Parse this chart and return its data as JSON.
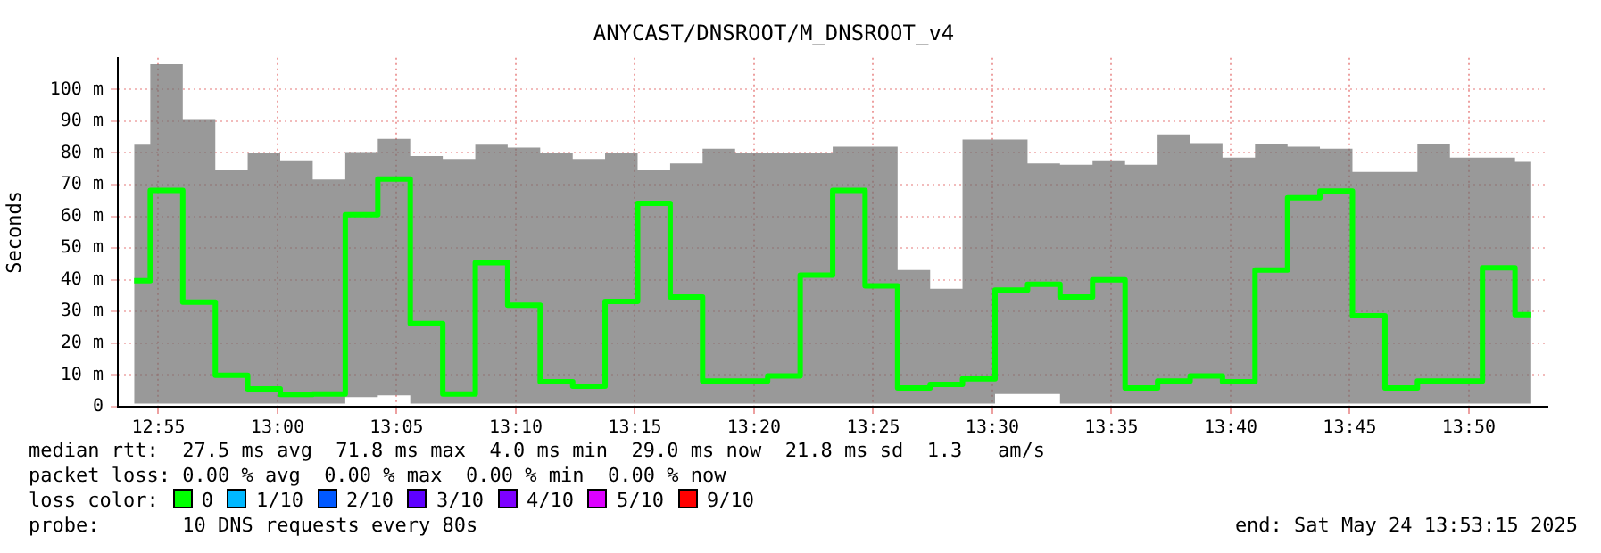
{
  "chart_data": {
    "type": "step",
    "title": "ANYCAST/DNSROOT/M_DNSROOT_v4",
    "ylabel": "Seconds",
    "x": [
      12.8997,
      12.9223,
      12.9452,
      12.9678,
      12.9905,
      13.0133,
      13.036,
      13.0588,
      13.0815,
      13.1042,
      13.127,
      13.1497,
      13.1723,
      13.1952,
      13.2178,
      13.2405,
      13.2633,
      13.286,
      13.3087,
      13.3315,
      13.3542,
      13.377,
      13.3997,
      13.4223,
      13.4452,
      13.4678,
      13.4905,
      13.5133,
      13.536,
      13.5587,
      13.5815,
      13.6042,
      13.627,
      13.6497,
      13.6723,
      13.6952,
      13.7178,
      13.7405,
      13.7633,
      13.786,
      13.8087,
      13.8315,
      13.8542,
      13.877
    ],
    "series": [
      {
        "color": "#00ff00",
        "values": [
          39.7,
          68.2,
          33,
          9.9,
          5.6,
          3.9,
          4,
          60.5,
          71.8,
          26.2,
          4,
          45.4,
          32,
          7.9,
          6.5,
          33.2,
          64.1,
          34.6,
          8.1,
          8.1,
          9.7,
          41.5,
          68.2,
          38.1,
          5.9,
          7,
          8.8,
          36.8,
          38.6,
          34.6,
          40,
          5.9,
          8.1,
          9.7,
          7.9,
          43.1,
          65.9,
          68,
          28.7,
          5.9,
          8.1,
          8.1,
          43.8,
          29
        ],
        "lower": [
          1,
          1,
          1,
          1,
          1,
          1,
          1,
          3,
          3.6,
          1,
          1,
          1,
          1,
          1,
          1,
          1,
          1,
          1,
          1,
          1,
          1,
          1,
          1,
          1,
          1,
          1,
          1,
          4,
          4,
          1,
          1,
          1,
          1,
          1,
          1,
          1,
          1,
          1,
          1,
          1,
          1,
          1,
          1,
          1
        ],
        "upper": [
          82.6,
          108,
          90.7,
          74.5,
          79.9,
          77.7,
          71.6,
          80.3,
          84.4,
          79,
          78.1,
          82.6,
          81.7,
          79.9,
          78.1,
          79.9,
          74.5,
          76.7,
          81.3,
          79.9,
          79.9,
          79.9,
          82,
          82,
          43.1,
          37.2,
          84.2,
          84.2,
          76.7,
          76.3,
          77.7,
          76.3,
          85.8,
          83.1,
          78.5,
          82.8,
          82,
          81.3,
          74,
          74,
          82.8,
          78.5,
          78.5,
          77.2
        ]
      }
    ],
    "xlim": [
      12.8883,
      13.8883
    ],
    "xticks": [
      {
        "value": 12.9167,
        "label": "12:55"
      },
      {
        "value": 13,
        "label": "13:00"
      },
      {
        "value": 13.0833,
        "label": "13:05"
      },
      {
        "value": 13.1667,
        "label": "13:10"
      },
      {
        "value": 13.25,
        "label": "13:15"
      },
      {
        "value": 13.3333,
        "label": "13:20"
      },
      {
        "value": 13.4167,
        "label": "13:25"
      },
      {
        "value": 13.5,
        "label": "13:30"
      },
      {
        "value": 13.5833,
        "label": "13:35"
      },
      {
        "value": 13.6667,
        "label": "13:40"
      },
      {
        "value": 13.75,
        "label": "13:45"
      },
      {
        "value": 13.8333,
        "label": "13:50"
      }
    ],
    "ylim": [
      0,
      110
    ],
    "yticks": [
      0,
      {
        "value": 10,
        "label": "10 m"
      },
      {
        "value": 20,
        "label": "20 m"
      },
      {
        "value": 30,
        "label": "30 m"
      },
      {
        "value": 40,
        "label": "40 m"
      },
      {
        "value": 50,
        "label": "50 m"
      },
      {
        "value": 60,
        "label": "60 m"
      },
      {
        "value": 70,
        "label": "70 m"
      },
      {
        "value": 80,
        "label": "80 m"
      },
      {
        "value": 90,
        "label": "90 m"
      },
      {
        "value": 100,
        "label": "100 m"
      }
    ],
    "grid": true,
    "annotations": [
      "median rtt:  27.5 ms avg  71.8 ms max  4.0 ms min  29.0 ms now  21.8 ms sd  1.3   am/s",
      "packet loss: 0.00 % avg  0.00 % max  0.00 % min  0.00 % now",
      "loss color:",
      "0",
      "1/10",
      "2/10",
      "3/10",
      "4/10",
      "5/10",
      "9/10",
      "probe:       10 DNS requests every 80s",
      "end: Sat May 24 13:53:15 2025"
    ]
  }
}
